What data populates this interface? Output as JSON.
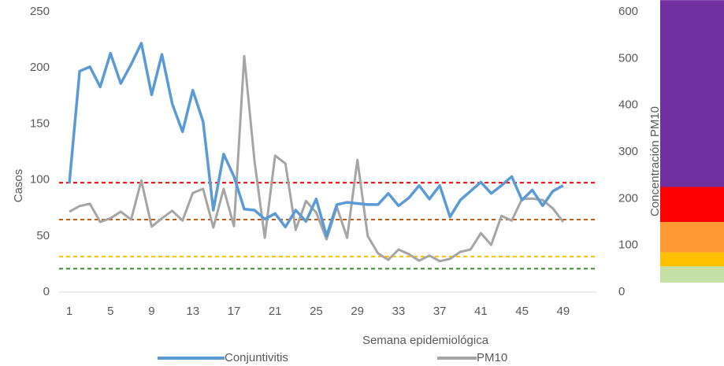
{
  "chart_data": {
    "type": "line",
    "x_label": "Semana epidemiológica",
    "y_label": "Casos",
    "y2_label": "Concentración PM10",
    "categories": [
      "1",
      null,
      null,
      null,
      "5",
      null,
      null,
      null,
      "9",
      null,
      null,
      null,
      "13",
      null,
      null,
      null,
      "17",
      null,
      null,
      null,
      "21",
      null,
      null,
      null,
      "25",
      null,
      null,
      null,
      "29",
      null,
      null,
      null,
      "33",
      null,
      null,
      null,
      "37",
      null,
      null,
      null,
      "41",
      null,
      null,
      null,
      "45",
      null,
      null,
      null,
      "49",
      null,
      null,
      null
    ],
    "ylim": [
      0,
      250
    ],
    "yticks": [
      0,
      50,
      100,
      150,
      200,
      250
    ],
    "y2lim": [
      0,
      600
    ],
    "y2ticks": [
      0,
      100,
      200,
      300,
      400,
      500,
      600
    ],
    "grid": false,
    "legend": "bottom",
    "series": [
      {
        "name": "Conjuntivitis",
        "color": "#5b9bd5",
        "values": [
          97,
          197,
          201,
          183,
          213,
          186,
          203,
          222,
          176,
          212,
          168,
          143,
          180,
          152,
          73,
          123,
          103,
          74,
          73,
          65,
          70,
          58,
          73,
          63,
          83,
          50,
          78,
          80,
          79,
          78,
          78,
          88,
          77,
          84,
          95,
          83,
          95,
          67,
          82,
          90,
          98,
          88,
          95,
          103,
          82,
          91,
          77,
          90,
          95,
          null,
          null,
          null
        ]
      },
      {
        "name": "PM10",
        "color": "#a5a5a5",
        "axis": "y2",
        "values": [
          172,
          184,
          189,
          150,
          158,
          172,
          155,
          239,
          140,
          158,
          174,
          153,
          212,
          221,
          138,
          221,
          141,
          505,
          280,
          116,
          292,
          275,
          133,
          195,
          170,
          113,
          182,
          116,
          283,
          120,
          83,
          69,
          91,
          81,
          67,
          78,
          66,
          71,
          86,
          91,
          126,
          101,
          163,
          153,
          199,
          200,
          197,
          179,
          150,
          null,
          null,
          null
        ]
      }
    ],
    "thresholds": [
      {
        "value": 234,
        "color": "#ff0000"
      },
      {
        "value": 155,
        "color": "#c55a11"
      },
      {
        "value": 76,
        "color": "#ffc000"
      },
      {
        "value": 50,
        "color": "#3a8a2e"
      }
    ],
    "bands": [
      {
        "range": [
          20,
          55
        ],
        "color": "#c5e0a5"
      },
      {
        "range": [
          55,
          85
        ],
        "color": "#ffc000"
      },
      {
        "range": [
          85,
          150
        ],
        "color": "#ff9933"
      },
      {
        "range": [
          150,
          225
        ],
        "color": "#ff0000"
      },
      {
        "range": [
          225,
          625
        ],
        "color": "#7030a0"
      }
    ]
  }
}
